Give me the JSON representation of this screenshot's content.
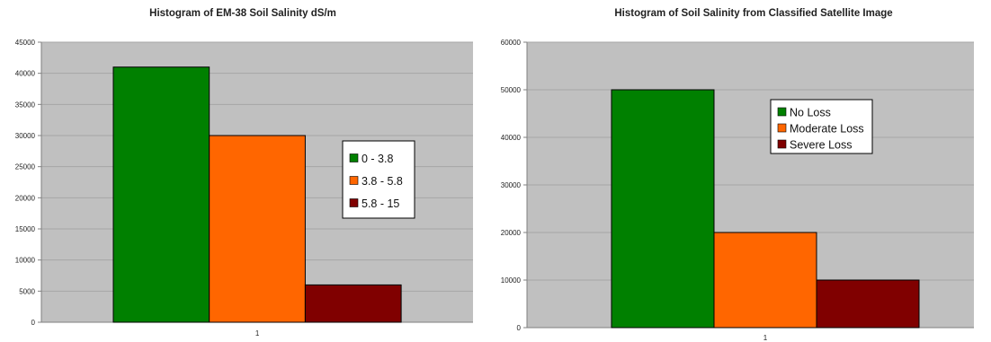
{
  "colors": {
    "plot_area": "#c0c0c0",
    "gridline": "#a6a6a6",
    "green": "#008000",
    "orange": "#ff6600",
    "maroon": "#800000"
  },
  "chart_data": [
    {
      "type": "bar",
      "title": "Histogram of EM-38 Soil Salinity dS/m",
      "xlabel": "",
      "ylabel": "",
      "categories": [
        "1"
      ],
      "series": [
        {
          "name": "0 - 3.8",
          "values": [
            41000
          ],
          "color": "#008000"
        },
        {
          "name": "3.8 - 5.8",
          "values": [
            30000
          ],
          "color": "#ff6600"
        },
        {
          "name": "5.8 - 15",
          "values": [
            6000
          ],
          "color": "#800000"
        }
      ],
      "ylim": [
        0,
        45000
      ],
      "yticks": [
        0,
        5000,
        10000,
        15000,
        20000,
        25000,
        30000,
        35000,
        40000,
        45000
      ],
      "grid": true,
      "legend": "right"
    },
    {
      "type": "bar",
      "title": "Histogram of Soil Salinity from Classified Satellite Image",
      "xlabel": "",
      "ylabel": "",
      "categories": [
        "1"
      ],
      "series": [
        {
          "name": "No Loss",
          "values": [
            50000
          ],
          "color": "#008000"
        },
        {
          "name": "Moderate Loss",
          "values": [
            20000
          ],
          "color": "#ff6600"
        },
        {
          "name": "Severe Loss",
          "values": [
            10000
          ],
          "color": "#800000"
        }
      ],
      "ylim": [
        0,
        60000
      ],
      "yticks": [
        0,
        10000,
        20000,
        30000,
        40000,
        50000,
        60000
      ],
      "grid": true,
      "legend": "center"
    }
  ]
}
